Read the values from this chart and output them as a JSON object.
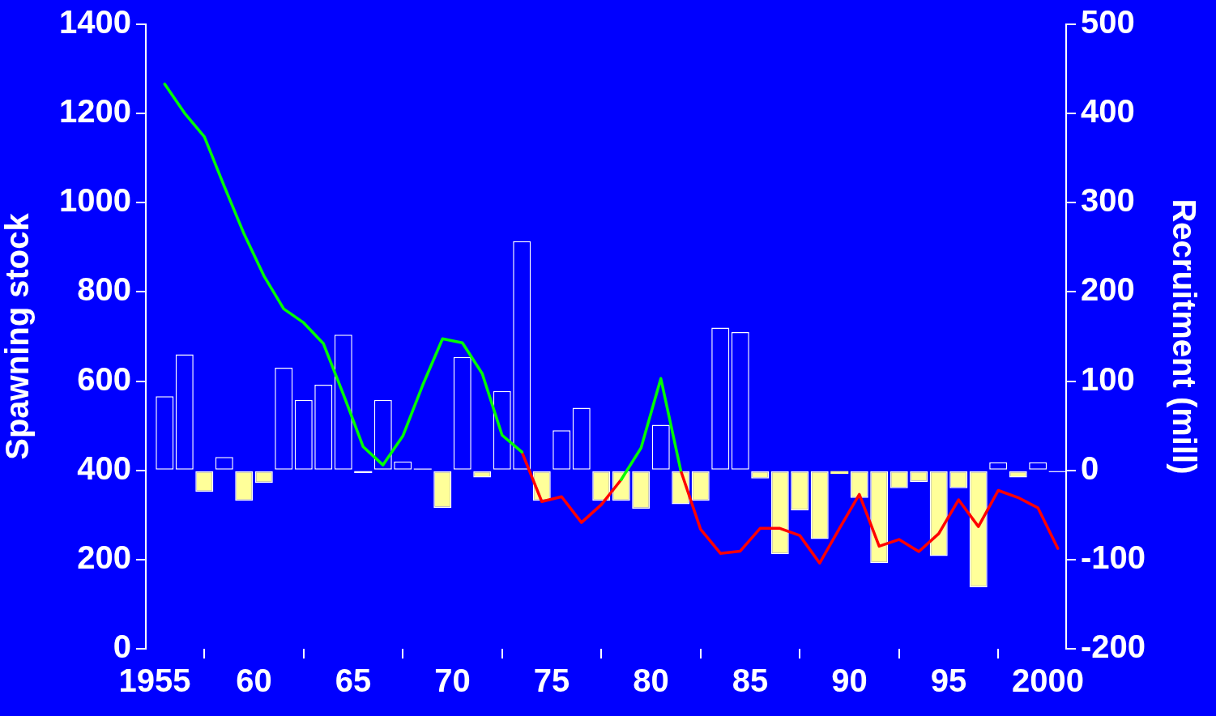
{
  "chart_data": {
    "type": "bar",
    "ylabel": "Spawning stock",
    "y2label": "Recruitment (mill)",
    "x": [
      1955.5,
      1956.5,
      1957.5,
      1958.5,
      1959.5,
      1960.5,
      1961.5,
      1962.5,
      1963.5,
      1964.5,
      1965.5,
      1966.5,
      1967.5,
      1968.5,
      1969.5,
      1970.5,
      1971.5,
      1972.5,
      1973.5,
      1974.5,
      1975.5,
      1976.5,
      1977.5,
      1978.5,
      1979.5,
      1980.5,
      1981.5,
      1982.5,
      1983.5,
      1984.5,
      1985.5,
      1986.5,
      1987.5,
      1988.5,
      1989.5,
      1990.5,
      1991.5,
      1992.5,
      1993.5,
      1994.5,
      1995.5,
      1996.5,
      1997.5,
      1998.5,
      1999.5,
      2000.5
    ],
    "xlim": [
      1954.55,
      2000.92
    ],
    "xticks": [
      1955,
      {
        "value": 1960,
        "label": "60"
      },
      {
        "value": 1965,
        "label": "65"
      },
      {
        "value": 1970,
        "label": "70"
      },
      {
        "value": 1975,
        "label": "75"
      },
      {
        "value": 1980,
        "label": "80"
      },
      {
        "value": 1985,
        "label": "85"
      },
      {
        "value": 1990,
        "label": "90"
      },
      {
        "value": 1995,
        "label": "95"
      },
      2000
    ],
    "ylim": [
      0,
      1400
    ],
    "yticks": [
      0,
      200,
      400,
      600,
      800,
      1000,
      1200,
      1400
    ],
    "y2lim": [
      -200,
      500
    ],
    "y2ticks": [
      -200,
      -100,
      0,
      100,
      200,
      300,
      400,
      500
    ],
    "grid": false,
    "legend": false,
    "marker": "none",
    "series": [
      {
        "axis": "y2",
        "values": [
          83,
          130,
          -24,
          15,
          -34,
          -14,
          115,
          79,
          96,
          152,
          -3,
          79,
          10,
          2,
          -42,
          127,
          -8,
          89,
          257,
          -34,
          45,
          70,
          -34,
          -34,
          -43,
          51,
          -38,
          -34,
          160,
          155,
          -9,
          -94,
          -45,
          -77,
          -4,
          -31,
          -104,
          -20,
          -13,
          -96,
          -20,
          -131,
          9,
          -8,
          9,
          -2
        ],
        "colors": [
          "#0000ff",
          "#0000ff",
          "#ffff99",
          "#0000ff",
          "#ffff99",
          "#ffff99",
          "#0000ff",
          "#0000ff",
          "#0000ff",
          "#0000ff",
          "#ffffff",
          "#0000ff",
          "#0000ff",
          "#ffffff",
          "#ffff99",
          "#0000ff",
          "#ffff99",
          "#0000ff",
          "#0000ff",
          "#ffff99",
          "#0000ff",
          "#0000ff",
          "#ffff99",
          "#ffff99",
          "#ffff99",
          "#0000ff",
          "#ffff99",
          "#ffff99",
          "#0000ff",
          "#0000ff",
          "#ffff99",
          "#ffff99",
          "#ffff99",
          "#ffff99",
          "#ffff99",
          "#ffff99",
          "#ffff99",
          "#ffff99",
          "#ffff99",
          "#ffff99",
          "#ffff99",
          "#ffff99",
          "#0000ff",
          "#ffff99",
          "#0000ff",
          "#ffffff"
        ]
      },
      {
        "type": "line",
        "color": "#00ff00",
        "values": [
          1266,
          1201,
          1148,
          1037,
          930,
          836,
          762,
          731,
          684,
          571,
          453,
          412,
          477,
          591,
          695,
          686,
          617,
          479,
          441,
          null,
          null,
          null,
          null,
          379,
          450,
          606,
          400,
          null,
          null,
          null,
          null,
          null,
          null,
          null,
          null,
          null,
          null,
          null,
          null,
          null,
          null,
          null,
          null,
          null,
          null,
          null
        ]
      },
      {
        "type": "line",
        "color": "#ff0000",
        "values": [
          null,
          null,
          null,
          null,
          null,
          null,
          null,
          null,
          null,
          null,
          null,
          null,
          null,
          null,
          null,
          null,
          null,
          null,
          441,
          330,
          341,
          283,
          323,
          379,
          null,
          null,
          400,
          268,
          214,
          219,
          270,
          270,
          254,
          192,
          270,
          346,
          230,
          245,
          218,
          258,
          334,
          274,
          355,
          339,
          316,
          225
        ]
      }
    ]
  }
}
